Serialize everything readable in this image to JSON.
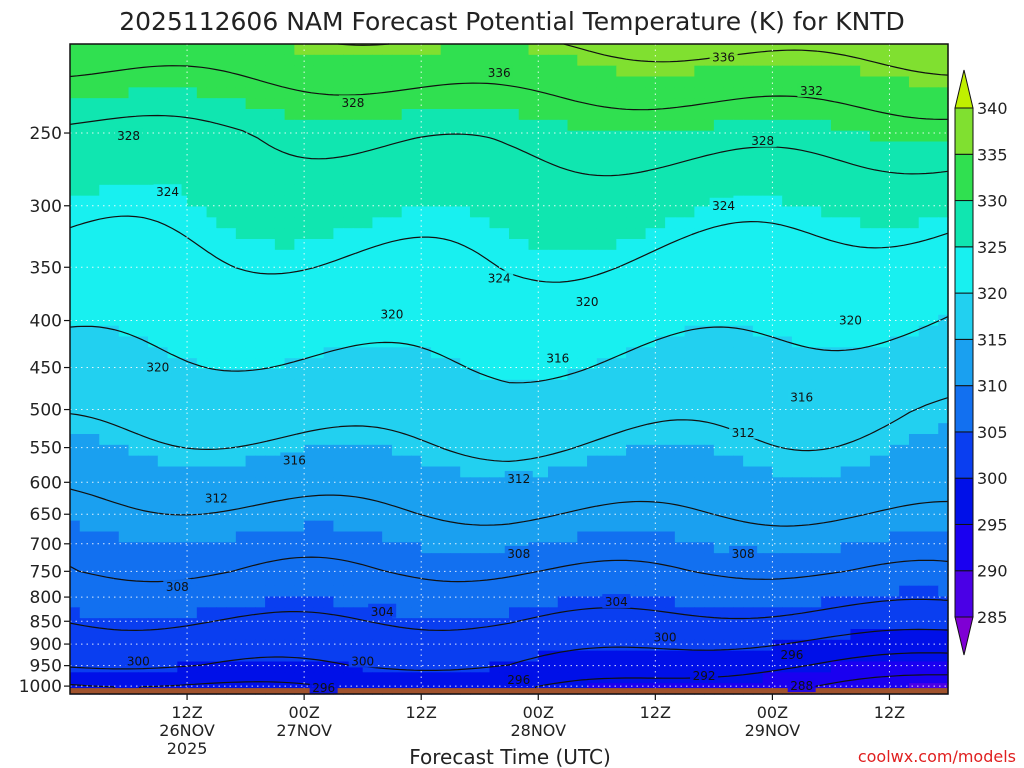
{
  "chart_data": {
    "type": "heatmap",
    "title": "2025112606 NAM Forecast Potential Temperature (K) for KNTD",
    "xlabel": "Forecast Time (UTC)",
    "ylabel": "",
    "y_scale": "log-pressure",
    "y_unit": "hPa",
    "ylim": [
      1020,
      200
    ],
    "yticks": [
      250,
      300,
      350,
      400,
      450,
      500,
      550,
      600,
      650,
      700,
      750,
      800,
      850,
      900,
      950,
      1000
    ],
    "x_hours": [
      -1,
      60
    ],
    "xticks": [
      {
        "hour": 6,
        "lines": [
          "12Z",
          "26NOV",
          "2025"
        ]
      },
      {
        "hour": 18,
        "lines": [
          "00Z",
          "27NOV"
        ]
      },
      {
        "hour": 30,
        "lines": [
          "12Z"
        ]
      },
      {
        "hour": 42,
        "lines": [
          "00Z",
          "28NOV"
        ]
      },
      {
        "hour": 54,
        "lines": [
          "12Z"
        ]
      },
      {
        "hour": 66,
        "lines": [
          "00Z",
          "29NOV"
        ]
      },
      {
        "hour": 78,
        "lines": [
          "12Z"
        ]
      }
    ],
    "x_domain": [
      -6,
      84
    ],
    "colorbar": {
      "levels": [
        285,
        290,
        295,
        300,
        305,
        310,
        315,
        320,
        325,
        330,
        335,
        340
      ],
      "colors": [
        "#7f00d4",
        "#4a00e6",
        "#1a00f0",
        "#0010e8",
        "#0a3ef0",
        "#1270f0",
        "#1aa0f0",
        "#22d0f0",
        "#18f0f0",
        "#10e6b0",
        "#30e050",
        "#80e030",
        "#c0f000"
      ]
    },
    "ground_color": "#a0522d",
    "contour_levels": [
      288,
      292,
      296,
      300,
      304,
      308,
      312,
      316,
      320,
      324,
      328,
      332,
      336
    ],
    "theta_profile": {
      "pressure": [
        1000,
        950,
        900,
        850,
        800,
        750,
        700,
        650,
        600,
        550,
        500,
        450,
        400,
        350,
        300,
        250,
        200
      ],
      "theta_start": [
        295,
        300,
        302,
        304,
        306,
        308,
        309,
        311,
        313,
        315,
        317,
        319,
        321,
        323,
        325,
        327,
        334
      ],
      "theta_mid": [
        297,
        300,
        302,
        304,
        306,
        308,
        310,
        312,
        314,
        316,
        318,
        320,
        322,
        324,
        326,
        329,
        336
      ],
      "theta_end": [
        290,
        294,
        298,
        302,
        305,
        308,
        310,
        312,
        314,
        315,
        316,
        318,
        320,
        322,
        325,
        330,
        338
      ]
    },
    "contour_labels": [
      {
        "value": "336",
        "hour": 38,
        "p": 215
      },
      {
        "value": "336",
        "hour": 61,
        "p": 207
      },
      {
        "value": "332",
        "hour": 70,
        "p": 225
      },
      {
        "value": "328",
        "hour": 23,
        "p": 232
      },
      {
        "value": "328",
        "hour": 0,
        "p": 252
      },
      {
        "value": "328",
        "hour": 65,
        "p": 255
      },
      {
        "value": "324",
        "hour": 4,
        "p": 290
      },
      {
        "value": "324",
        "hour": 61,
        "p": 300
      },
      {
        "value": "324",
        "hour": 38,
        "p": 360
      },
      {
        "value": "320",
        "hour": 27,
        "p": 394
      },
      {
        "value": "320",
        "hour": 47,
        "p": 382
      },
      {
        "value": "320",
        "hour": 74,
        "p": 400
      },
      {
        "value": "320",
        "hour": 3,
        "p": 450
      },
      {
        "value": "316",
        "hour": 44,
        "p": 440
      },
      {
        "value": "316",
        "hour": 69,
        "p": 485
      },
      {
        "value": "316",
        "hour": 17,
        "p": 568
      },
      {
        "value": "312",
        "hour": 63,
        "p": 530
      },
      {
        "value": "312",
        "hour": 40,
        "p": 595
      },
      {
        "value": "312",
        "hour": 9,
        "p": 625
      },
      {
        "value": "308",
        "hour": 40,
        "p": 718
      },
      {
        "value": "308",
        "hour": 63,
        "p": 718
      },
      {
        "value": "308",
        "hour": 5,
        "p": 780
      },
      {
        "value": "304",
        "hour": 26,
        "p": 830
      },
      {
        "value": "304",
        "hour": 50,
        "p": 810
      },
      {
        "value": "300",
        "hour": 55,
        "p": 885
      },
      {
        "value": "300",
        "hour": 1,
        "p": 940
      },
      {
        "value": "300",
        "hour": 24,
        "p": 940
      },
      {
        "value": "296",
        "hour": 68,
        "p": 925
      },
      {
        "value": "296",
        "hour": 40,
        "p": 985
      },
      {
        "value": "296",
        "hour": 20,
        "p": 1005
      },
      {
        "value": "292",
        "hour": 59,
        "p": 975
      },
      {
        "value": "288",
        "hour": 69,
        "p": 1000
      }
    ]
  },
  "credit": "coolwx.com/models"
}
